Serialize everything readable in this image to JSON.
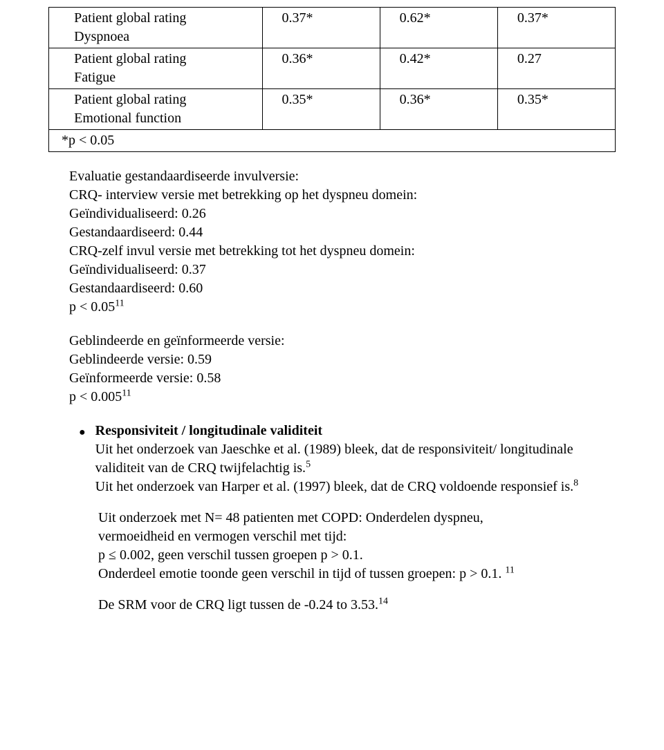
{
  "table": {
    "rows": [
      {
        "label_lines": [
          "Patient global rating",
          "Dyspnoea"
        ],
        "v1": "0.37*",
        "v2": "0.62*",
        "v3": "0.37*"
      },
      {
        "label_lines": [
          "Patient global rating",
          "Fatigue"
        ],
        "v1": "0.36*",
        "v2": "0.42*",
        "v3": "0.27"
      },
      {
        "label_lines": [
          "Patient global rating",
          "Emotional function"
        ],
        "v1": "0.35*",
        "v2": "0.36*",
        "v3": "0.35*"
      },
      {
        "label_lines": [
          "  *p < 0.05"
        ],
        "v1": "",
        "v2": "",
        "v3": "",
        "bottom_only": true
      }
    ]
  },
  "eval": {
    "intro": "Evaluatie gestandaardiseerde invulversie:",
    "crq_interview_line": "CRQ- interview versie met betrekking op het dyspneu domein:",
    "geind1": "Geïndividualiseerd: 0.26",
    "gest1": "Gestandaardiseerd: 0.44",
    "crq_zelf_line": "CRQ-zelf invul versie met betrekking tot het dyspneu domein:",
    "geind2": "Geïndividualiseerd: 0.37",
    "gest2": "Gestandaardiseerd: 0.60",
    "p1_text": "p < 0.05",
    "p1_sup": "11"
  },
  "blind": {
    "title": "Geblindeerde en geïnformeerde versie:",
    "geblind": "Geblindeerde versie: 0.59",
    "geinform": "Geïnformeerde versie: 0.58",
    "p_text": "p < 0.005",
    "p_sup": "11"
  },
  "resp": {
    "heading": "Responsiviteit / longitudinale validiteit",
    "l1a": "Uit het onderzoek van Jaeschke et al. (1989) bleek, dat de  responsiviteit/ longitudinale validiteit van de CRQ twijfelachtig is.",
    "l1_sup": "5",
    "l2a": "Uit het onderzoek van Harper et al. (1997) bleek, dat de CRQ voldoende responsief is.",
    "l2_sup": "8"
  },
  "copd": {
    "l1": "Uit onderzoek met N= 48 patienten met COPD: Onderdelen dyspneu,",
    "l2": " vermoeidheid en vermogen verschil met tijd:",
    "l3": "p ≤ 0.002, geen verschil tussen groepen p > 0.1.",
    "l4a": "Onderdeel emotie toonde geen verschil in tijd of tussen groepen:  p > 0.1.",
    "l4_sup": "11"
  },
  "srm": {
    "text": "De SRM voor de CRQ ligt tussen de  -0.24 to 3.53.",
    "sup": "14"
  }
}
